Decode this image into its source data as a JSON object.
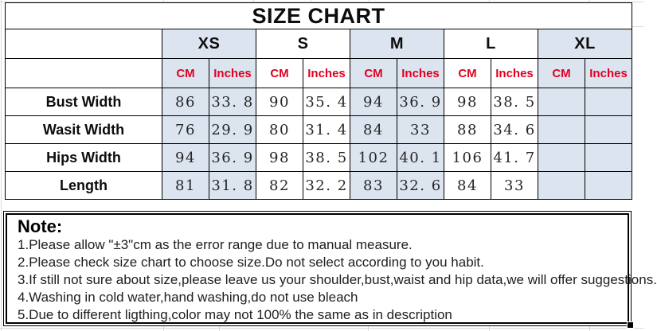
{
  "title": "SIZE CHART",
  "table": {
    "sizes": [
      "XS",
      "S",
      "M",
      "L",
      "XL"
    ],
    "unit_headers": [
      "CM",
      "Inches"
    ],
    "rows": [
      {
        "label": "Bust Width",
        "values": [
          "86",
          "33. 8",
          "90",
          "35. 4",
          "94",
          "36. 9",
          "98",
          "38. 5",
          "",
          ""
        ]
      },
      {
        "label": "Wasit Width",
        "values": [
          "76",
          "29. 9",
          "80",
          "31. 4",
          "84",
          "33",
          "88",
          "34. 6",
          "",
          ""
        ]
      },
      {
        "label": "Hips Width",
        "values": [
          "94",
          "36. 9",
          "98",
          "38. 5",
          "102",
          "40. 1",
          "106",
          "41. 7",
          "",
          ""
        ]
      },
      {
        "label": "Length",
        "values": [
          "81",
          "31. 8",
          "82",
          "32. 2",
          "83",
          "32. 6",
          "84",
          "33",
          "",
          ""
        ]
      }
    ]
  },
  "note": {
    "heading": "Note:",
    "lines": [
      "1.Please allow \"±3\"cm as the error range due to manual measure.",
      "2.Please check size chart to choose size.Do not select according to you habit.",
      "3.If still not sure about size,please leave us your shoulder,bust,waist and hip data,we will offer suggestions.",
      "4.Washing in cold water,hand washing,do not use bleach",
      "5.Due to different ligthing,color may not 100% the same as in description"
    ]
  },
  "colors": {
    "accent_fill": "#dce4f0",
    "unit_text": "#e00020",
    "border": "#000000"
  }
}
